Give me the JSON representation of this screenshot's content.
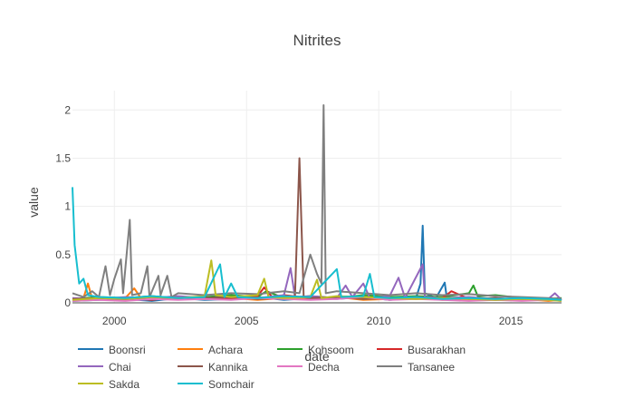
{
  "chart_data": {
    "type": "line",
    "title": "Nitrites",
    "xlabel": "date",
    "ylabel": "value",
    "xlim": [
      "1998-06-01",
      "2016-12-01"
    ],
    "ylim": [
      0,
      2.2
    ],
    "xticks": [
      "2000",
      "2005",
      "2010",
      "2015"
    ],
    "yticks": [
      "0",
      "0.5",
      "1",
      "1.5",
      "2"
    ],
    "grid": true,
    "legend_position": "bottom",
    "series": [
      {
        "name": "Boonsri",
        "color": "#1f77b4",
        "points": [
          [
            "1998-06-01",
            0.02
          ],
          [
            "1999-06-01",
            0.03
          ],
          [
            "2000-06-01",
            0.04
          ],
          [
            "2001-06-01",
            0.02
          ],
          [
            "2002-06-01",
            0.05
          ],
          [
            "2003-06-01",
            0.03
          ],
          [
            "2004-06-01",
            0.04
          ],
          [
            "2005-06-01",
            0.06
          ],
          [
            "2006-06-01",
            0.03
          ],
          [
            "2007-06-01",
            0.05
          ],
          [
            "2008-06-01",
            0.04
          ],
          [
            "2009-06-01",
            0.06
          ],
          [
            "2010-06-01",
            0.03
          ],
          [
            "2011-06-01",
            0.05
          ],
          [
            "2011-08-01",
            0.2
          ],
          [
            "2011-09-01",
            0.8
          ],
          [
            "2011-10-01",
            0.1
          ],
          [
            "2012-03-01",
            0.05
          ],
          [
            "2012-07-01",
            0.21
          ],
          [
            "2012-08-01",
            0.04
          ],
          [
            "2013-06-01",
            0.05
          ],
          [
            "2014-06-01",
            0.03
          ],
          [
            "2015-06-01",
            0.04
          ],
          [
            "2016-06-01",
            0.03
          ],
          [
            "2016-12-01",
            0.04
          ]
        ]
      },
      {
        "name": "Achara",
        "color": "#ff7f0e",
        "points": [
          [
            "1998-06-01",
            0.03
          ],
          [
            "1998-11-01",
            0.05
          ],
          [
            "1999-01-01",
            0.2
          ],
          [
            "1999-03-01",
            0.04
          ],
          [
            "2000-06-01",
            0.05
          ],
          [
            "2000-10-01",
            0.15
          ],
          [
            "2001-01-01",
            0.05
          ],
          [
            "2002-06-01",
            0.06
          ],
          [
            "2003-06-01",
            0.04
          ],
          [
            "2004-06-01",
            0.05
          ],
          [
            "2005-06-01",
            0.03
          ],
          [
            "2006-06-01",
            0.05
          ],
          [
            "2007-06-01",
            0.04
          ],
          [
            "2008-06-01",
            0.06
          ],
          [
            "2009-06-01",
            0.03
          ],
          [
            "2010-06-01",
            0.04
          ],
          [
            "2011-06-01",
            0.05
          ],
          [
            "2012-06-01",
            0.03
          ],
          [
            "2013-06-01",
            0.04
          ],
          [
            "2014-06-01",
            0.03
          ],
          [
            "2015-06-01",
            0.04
          ],
          [
            "2016-06-01",
            0.02
          ],
          [
            "2016-12-01",
            0.03
          ]
        ]
      },
      {
        "name": "Kohsoom",
        "color": "#2ca02c",
        "points": [
          [
            "1998-06-01",
            0.04
          ],
          [
            "1999-06-01",
            0.06
          ],
          [
            "2000-06-01",
            0.05
          ],
          [
            "2001-06-01",
            0.07
          ],
          [
            "2002-06-01",
            0.05
          ],
          [
            "2003-06-01",
            0.06
          ],
          [
            "2004-06-01",
            0.08
          ],
          [
            "2005-06-01",
            0.06
          ],
          [
            "2005-10-01",
            0.12
          ],
          [
            "2006-06-01",
            0.05
          ],
          [
            "2007-06-01",
            0.07
          ],
          [
            "2008-06-01",
            0.05
          ],
          [
            "2009-06-01",
            0.08
          ],
          [
            "2010-06-01",
            0.06
          ],
          [
            "2011-06-01",
            0.07
          ],
          [
            "2012-06-01",
            0.06
          ],
          [
            "2013-06-01",
            0.1
          ],
          [
            "2013-08-01",
            0.18
          ],
          [
            "2013-10-01",
            0.07
          ],
          [
            "2014-06-01",
            0.08
          ],
          [
            "2015-06-01",
            0.05
          ],
          [
            "2016-06-01",
            0.04
          ],
          [
            "2016-12-01",
            0.05
          ]
        ]
      },
      {
        "name": "Busarakhan",
        "color": "#d62728",
        "points": [
          [
            "1998-06-01",
            0.03
          ],
          [
            "1999-06-01",
            0.04
          ],
          [
            "2000-06-01",
            0.05
          ],
          [
            "2001-06-01",
            0.03
          ],
          [
            "2002-06-01",
            0.06
          ],
          [
            "2003-06-01",
            0.04
          ],
          [
            "2004-06-01",
            0.05
          ],
          [
            "2005-06-01",
            0.07
          ],
          [
            "2005-09-01",
            0.16
          ],
          [
            "2006-01-01",
            0.05
          ],
          [
            "2006-06-01",
            0.08
          ],
          [
            "2007-06-01",
            0.05
          ],
          [
            "2008-06-01",
            0.06
          ],
          [
            "2009-06-01",
            0.05
          ],
          [
            "2010-06-01",
            0.04
          ],
          [
            "2011-06-01",
            0.06
          ],
          [
            "2012-06-01",
            0.05
          ],
          [
            "2012-10-01",
            0.12
          ],
          [
            "2013-06-01",
            0.04
          ],
          [
            "2014-06-01",
            0.05
          ],
          [
            "2015-06-01",
            0.03
          ],
          [
            "2016-06-01",
            0.04
          ],
          [
            "2016-12-01",
            0.03
          ]
        ]
      },
      {
        "name": "Chai",
        "color": "#9467bd",
        "points": [
          [
            "1998-06-01",
            0.05
          ],
          [
            "1999-06-01",
            0.04
          ],
          [
            "2000-06-01",
            0.06
          ],
          [
            "2001-06-01",
            0.05
          ],
          [
            "2002-06-01",
            0.07
          ],
          [
            "2003-06-01",
            0.05
          ],
          [
            "2004-06-01",
            0.06
          ],
          [
            "2005-06-01",
            0.05
          ],
          [
            "2006-06-01",
            0.08
          ],
          [
            "2006-09-01",
            0.36
          ],
          [
            "2006-11-01",
            0.06
          ],
          [
            "2007-06-01",
            0.07
          ],
          [
            "2008-06-01",
            0.05
          ],
          [
            "2008-10-01",
            0.18
          ],
          [
            "2009-01-01",
            0.06
          ],
          [
            "2009-06-01",
            0.2
          ],
          [
            "2009-09-01",
            0.05
          ],
          [
            "2010-06-01",
            0.07
          ],
          [
            "2010-10-01",
            0.26
          ],
          [
            "2011-01-01",
            0.05
          ],
          [
            "2011-09-01",
            0.4
          ],
          [
            "2011-10-01",
            0.06
          ],
          [
            "2012-06-01",
            0.05
          ],
          [
            "2013-06-01",
            0.06
          ],
          [
            "2014-06-01",
            0.04
          ],
          [
            "2015-06-01",
            0.05
          ],
          [
            "2016-06-01",
            0.04
          ],
          [
            "2016-09-01",
            0.1
          ],
          [
            "2016-12-01",
            0.03
          ]
        ]
      },
      {
        "name": "Kannika",
        "color": "#8c564b",
        "points": [
          [
            "1998-06-01",
            0.04
          ],
          [
            "1999-06-01",
            0.05
          ],
          [
            "2000-06-01",
            0.03
          ],
          [
            "2001-06-01",
            0.06
          ],
          [
            "2002-06-01",
            0.04
          ],
          [
            "2003-06-01",
            0.05
          ],
          [
            "2004-06-01",
            0.06
          ],
          [
            "2005-06-01",
            0.04
          ],
          [
            "2006-06-01",
            0.05
          ],
          [
            "2006-11-01",
            0.07
          ],
          [
            "2007-01-01",
            1.5
          ],
          [
            "2007-03-01",
            0.06
          ],
          [
            "2007-06-01",
            0.05
          ],
          [
            "2008-06-01",
            0.06
          ],
          [
            "2009-06-01",
            0.04
          ],
          [
            "2010-06-01",
            0.05
          ],
          [
            "2011-06-01",
            0.04
          ],
          [
            "2012-06-01",
            0.05
          ],
          [
            "2013-06-01",
            0.04
          ],
          [
            "2014-06-01",
            0.05
          ],
          [
            "2015-06-01",
            0.03
          ],
          [
            "2016-06-01",
            0.04
          ],
          [
            "2016-12-01",
            0.03
          ]
        ]
      },
      {
        "name": "Decha",
        "color": "#e377c2",
        "points": [
          [
            "1998-06-01",
            0.02
          ],
          [
            "1999-06-01",
            0.03
          ],
          [
            "2000-06-01",
            0.02
          ],
          [
            "2001-06-01",
            0.04
          ],
          [
            "2002-06-01",
            0.03
          ],
          [
            "2003-06-01",
            0.04
          ],
          [
            "2004-06-01",
            0.03
          ],
          [
            "2005-06-01",
            0.05
          ],
          [
            "2006-06-01",
            0.04
          ],
          [
            "2007-06-01",
            0.03
          ],
          [
            "2008-06-01",
            0.04
          ],
          [
            "2009-06-01",
            0.06
          ],
          [
            "2010-06-01",
            0.03
          ],
          [
            "2011-06-01",
            0.04
          ],
          [
            "2012-06-01",
            0.03
          ],
          [
            "2013-06-01",
            0.02
          ],
          [
            "2014-06-01",
            0.03
          ],
          [
            "2015-06-01",
            0.02
          ],
          [
            "2016-06-01",
            0.03
          ],
          [
            "2016-12-01",
            0.02
          ]
        ]
      },
      {
        "name": "Tansanee",
        "color": "#7f7f7f",
        "points": [
          [
            "1998-06-01",
            0.1
          ],
          [
            "1998-11-01",
            0.06
          ],
          [
            "1999-03-01",
            0.12
          ],
          [
            "1999-06-01",
            0.06
          ],
          [
            "1999-09-01",
            0.38
          ],
          [
            "1999-11-01",
            0.08
          ],
          [
            "2000-01-01",
            0.25
          ],
          [
            "2000-04-01",
            0.45
          ],
          [
            "2000-05-01",
            0.1
          ],
          [
            "2000-08-01",
            0.86
          ],
          [
            "2000-09-01",
            0.08
          ],
          [
            "2001-01-01",
            0.1
          ],
          [
            "2001-04-01",
            0.38
          ],
          [
            "2001-05-01",
            0.06
          ],
          [
            "2001-09-01",
            0.28
          ],
          [
            "2001-10-01",
            0.08
          ],
          [
            "2002-01-01",
            0.28
          ],
          [
            "2002-03-01",
            0.06
          ],
          [
            "2002-06-01",
            0.1
          ],
          [
            "2003-06-01",
            0.08
          ],
          [
            "2004-06-01",
            0.1
          ],
          [
            "2005-06-01",
            0.09
          ],
          [
            "2006-06-01",
            0.12
          ],
          [
            "2007-01-01",
            0.1
          ],
          [
            "2007-06-01",
            0.5
          ],
          [
            "2007-09-01",
            0.3
          ],
          [
            "2007-11-01",
            0.2
          ],
          [
            "2007-12-01",
            2.05
          ],
          [
            "2008-01-01",
            0.1
          ],
          [
            "2008-06-01",
            0.12
          ],
          [
            "2009-06-01",
            0.1
          ],
          [
            "2010-06-01",
            0.08
          ],
          [
            "2011-06-01",
            0.1
          ],
          [
            "2012-06-01",
            0.08
          ],
          [
            "2013-06-01",
            0.09
          ],
          [
            "2014-06-01",
            0.07
          ],
          [
            "2015-06-01",
            0.06
          ],
          [
            "2016-06-01",
            0.05
          ],
          [
            "2016-12-01",
            0.04
          ]
        ]
      },
      {
        "name": "Sakda",
        "color": "#bcbd22",
        "points": [
          [
            "1998-06-01",
            0.03
          ],
          [
            "1999-06-01",
            0.05
          ],
          [
            "2000-06-01",
            0.04
          ],
          [
            "2001-06-01",
            0.06
          ],
          [
            "2002-06-01",
            0.05
          ],
          [
            "2003-06-01",
            0.07
          ],
          [
            "2003-09-01",
            0.44
          ],
          [
            "2003-11-01",
            0.08
          ],
          [
            "2004-06-01",
            0.06
          ],
          [
            "2005-06-01",
            0.08
          ],
          [
            "2005-09-01",
            0.25
          ],
          [
            "2005-11-01",
            0.06
          ],
          [
            "2006-06-01",
            0.05
          ],
          [
            "2007-06-01",
            0.06
          ],
          [
            "2007-09-01",
            0.24
          ],
          [
            "2007-11-01",
            0.05
          ],
          [
            "2008-06-01",
            0.07
          ],
          [
            "2009-06-01",
            0.06
          ],
          [
            "2010-06-01",
            0.05
          ],
          [
            "2011-06-01",
            0.04
          ],
          [
            "2012-06-01",
            0.05
          ],
          [
            "2013-06-01",
            0.04
          ],
          [
            "2014-06-01",
            0.03
          ],
          [
            "2015-06-01",
            0.04
          ],
          [
            "2016-06-01",
            0.03
          ],
          [
            "2016-12-01",
            0.02
          ]
        ]
      },
      {
        "name": "Somchair",
        "color": "#17becf",
        "points": [
          [
            "1998-06-01",
            1.2
          ],
          [
            "1998-07-01",
            0.6
          ],
          [
            "1998-09-01",
            0.2
          ],
          [
            "1998-11-01",
            0.25
          ],
          [
            "1999-01-01",
            0.08
          ],
          [
            "1999-06-01",
            0.06
          ],
          [
            "2000-06-01",
            0.05
          ],
          [
            "2001-06-01",
            0.07
          ],
          [
            "2002-06-01",
            0.05
          ],
          [
            "2003-06-01",
            0.06
          ],
          [
            "2004-01-01",
            0.4
          ],
          [
            "2004-03-01",
            0.06
          ],
          [
            "2004-06-01",
            0.2
          ],
          [
            "2004-09-01",
            0.06
          ],
          [
            "2005-06-01",
            0.05
          ],
          [
            "2006-06-01",
            0.07
          ],
          [
            "2007-06-01",
            0.06
          ],
          [
            "2008-06-01",
            0.35
          ],
          [
            "2008-08-01",
            0.06
          ],
          [
            "2009-06-01",
            0.07
          ],
          [
            "2009-09-01",
            0.3
          ],
          [
            "2009-11-01",
            0.06
          ],
          [
            "2010-06-01",
            0.05
          ],
          [
            "2011-06-01",
            0.06
          ],
          [
            "2012-06-01",
            0.04
          ],
          [
            "2013-06-01",
            0.05
          ],
          [
            "2014-06-01",
            0.04
          ],
          [
            "2015-06-01",
            0.05
          ],
          [
            "2016-06-01",
            0.04
          ],
          [
            "2016-12-01",
            0.03
          ]
        ]
      }
    ]
  }
}
